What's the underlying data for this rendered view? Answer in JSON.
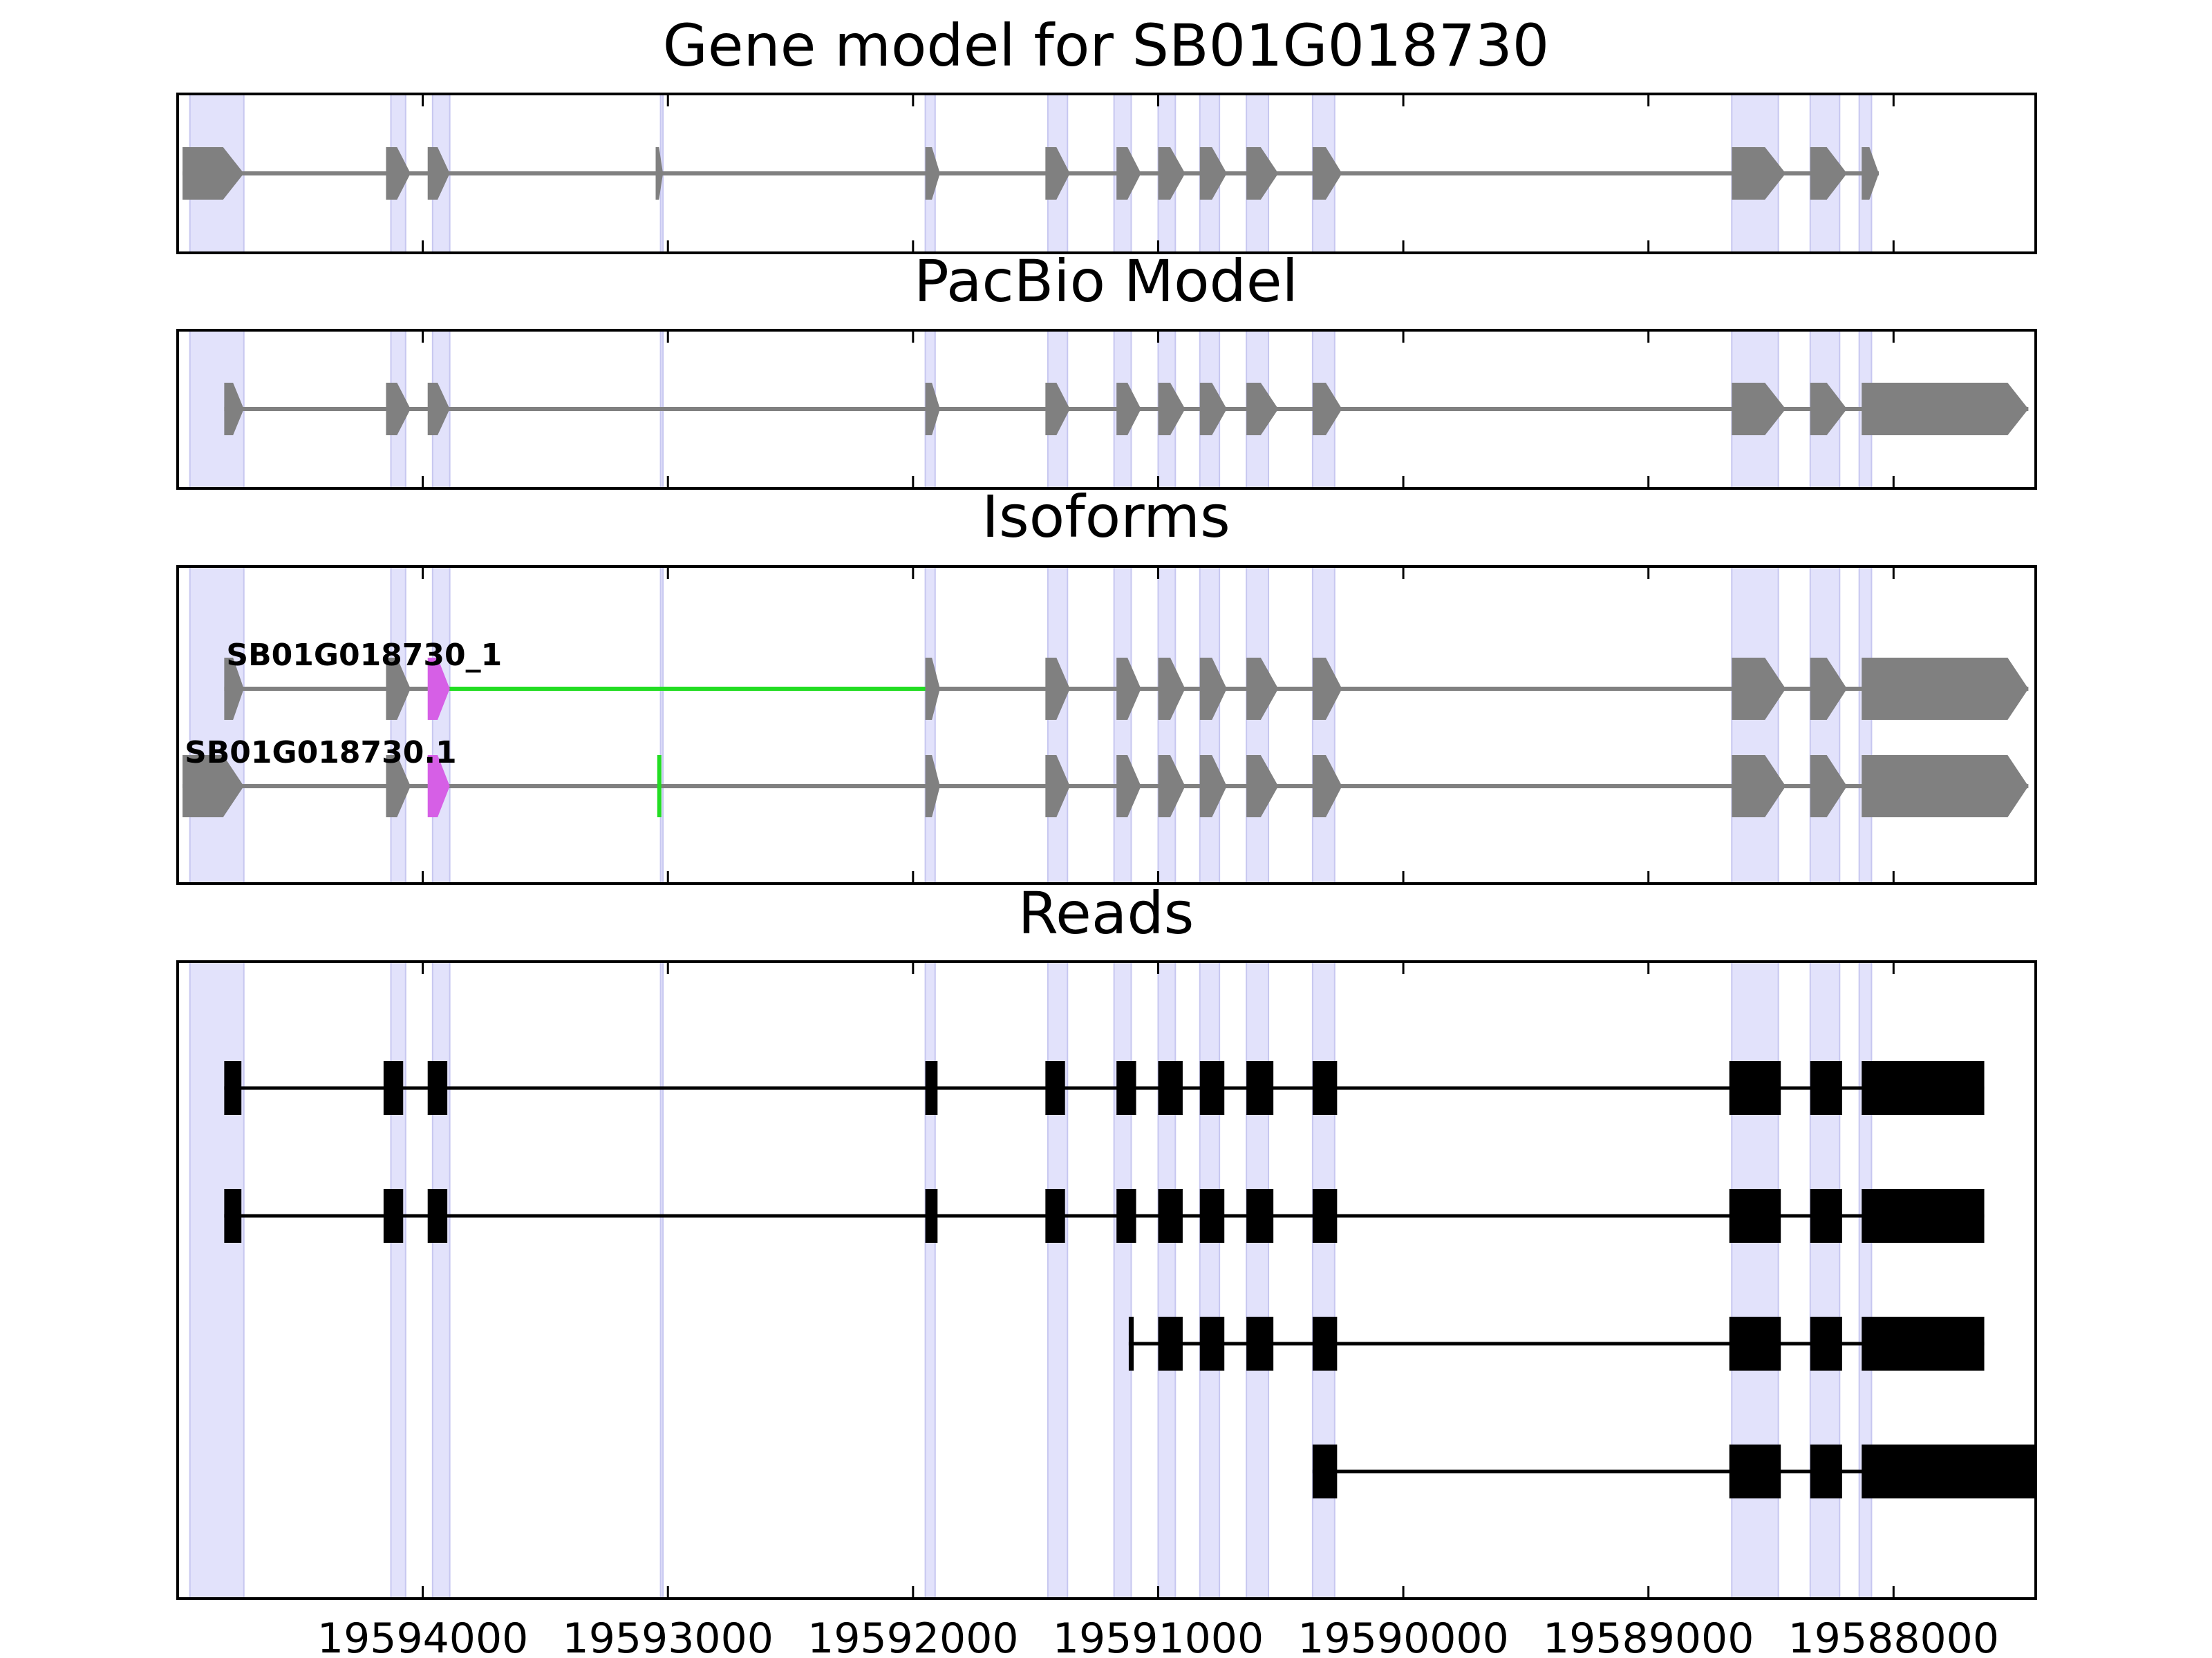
{
  "chart_data": {
    "type": "gene-track",
    "x_range": [
      19595000,
      19587420
    ],
    "x_axis_reversed": true,
    "x_ticks": [
      19594000,
      19593000,
      19592000,
      19591000,
      19590000,
      19589000,
      19588000
    ],
    "x_tick_labels": [
      "19594000",
      "19593000",
      "19592000",
      "19591000",
      "19590000",
      "19589000",
      "19588000"
    ],
    "colors": {
      "exon": "#808080",
      "read": "#000000",
      "highlight": "#e2e2fb",
      "highlight_edge": "#c7c7f0",
      "novel_exon": "#d65fe6",
      "novel_junction": "#22dd22",
      "frame": "#000000"
    },
    "highlight_regions": [
      [
        19594950,
        19594730
      ],
      [
        19594130,
        19594070
      ],
      [
        19593960,
        19593890
      ],
      [
        19593030,
        19593020
      ],
      [
        19591950,
        19591910
      ],
      [
        19591450,
        19591370
      ],
      [
        19591180,
        19591110
      ],
      [
        19591000,
        19590930
      ],
      [
        19590830,
        19590750
      ],
      [
        19590640,
        19590550
      ],
      [
        19590370,
        19590280
      ],
      [
        19588660,
        19588470
      ],
      [
        19588340,
        19588220
      ],
      [
        19588140,
        19588090
      ]
    ],
    "panels": [
      {
        "title": "Gene model for SB01G018730",
        "tracks": [
          {
            "label": "",
            "style": "gene",
            "exons": [
              [
                19594980,
                19594730
              ],
              [
                19594150,
                19594050
              ],
              [
                19593980,
                19593890
              ],
              [
                19593050,
                19593020
              ],
              [
                19591950,
                19591890
              ],
              [
                19591460,
                19591360
              ],
              [
                19591170,
                19591070
              ],
              [
                19591000,
                19590890
              ],
              [
                19590830,
                19590720
              ],
              [
                19590640,
                19590510
              ],
              [
                19590370,
                19590250
              ],
              [
                19588660,
                19588440
              ],
              [
                19588340,
                19588190
              ],
              [
                19588130,
                19588060
              ]
            ],
            "novel_exons": [],
            "novel_junctions": []
          }
        ]
      },
      {
        "title": "PacBio Model",
        "tracks": [
          {
            "label": "",
            "style": "gene",
            "exons": [
              [
                19594810,
                19594730
              ],
              [
                19594150,
                19594050
              ],
              [
                19593980,
                19593890
              ],
              [
                19591950,
                19591890
              ],
              [
                19591460,
                19591360
              ],
              [
                19591170,
                19591070
              ],
              [
                19591000,
                19590890
              ],
              [
                19590830,
                19590720
              ],
              [
                19590640,
                19590510
              ],
              [
                19590370,
                19590250
              ],
              [
                19588660,
                19588440
              ],
              [
                19588340,
                19588190
              ],
              [
                19588130,
                19587450
              ]
            ],
            "novel_exons": [],
            "novel_junctions": []
          }
        ]
      },
      {
        "title": "Isoforms",
        "tracks": [
          {
            "label": "SB01G018730_1",
            "style": "gene",
            "exons": [
              [
                19594810,
                19594730
              ],
              [
                19594150,
                19594050
              ],
              [
                19591950,
                19591890
              ],
              [
                19591460,
                19591360
              ],
              [
                19591170,
                19591070
              ],
              [
                19591000,
                19590890
              ],
              [
                19590830,
                19590720
              ],
              [
                19590640,
                19590510
              ],
              [
                19590370,
                19590250
              ],
              [
                19588660,
                19588440
              ],
              [
                19588340,
                19588190
              ],
              [
                19588130,
                19587450
              ]
            ],
            "novel_exons": [
              [
                19593980,
                19593890
              ]
            ],
            "novel_junctions": [
              [
                19593890,
                19591950
              ]
            ]
          },
          {
            "label": "SB01G018730.1",
            "style": "gene",
            "exons": [
              [
                19594980,
                19594730
              ],
              [
                19594150,
                19594050
              ],
              [
                19591950,
                19591890
              ],
              [
                19591460,
                19591360
              ],
              [
                19591170,
                19591070
              ],
              [
                19591000,
                19590890
              ],
              [
                19590830,
                19590720
              ],
              [
                19590640,
                19590510
              ],
              [
                19590370,
                19590250
              ],
              [
                19588660,
                19588440
              ],
              [
                19588340,
                19588190
              ],
              [
                19588130,
                19587450
              ]
            ],
            "novel_exons": [
              [
                19593980,
                19593890
              ]
            ],
            "novel_junctions": [
              [
                19593035,
                19593035
              ]
            ]
          }
        ]
      },
      {
        "title": "Reads",
        "tracks": [
          {
            "label": "",
            "style": "read",
            "exons": [
              [
                19594810,
                19594740
              ],
              [
                19594160,
                19594080
              ],
              [
                19593980,
                19593900
              ],
              [
                19591950,
                19591900
              ],
              [
                19591460,
                19591380
              ],
              [
                19591170,
                19591090
              ],
              [
                19591000,
                19590900
              ],
              [
                19590830,
                19590730
              ],
              [
                19590640,
                19590530
              ],
              [
                19590370,
                19590270
              ],
              [
                19588670,
                19588460
              ],
              [
                19588340,
                19588210
              ],
              [
                19588130,
                19587630
              ]
            ]
          },
          {
            "label": "",
            "style": "read",
            "exons": [
              [
                19594810,
                19594740
              ],
              [
                19594160,
                19594080
              ],
              [
                19593980,
                19593900
              ],
              [
                19591950,
                19591900
              ],
              [
                19591460,
                19591380
              ],
              [
                19591170,
                19591090
              ],
              [
                19591000,
                19590900
              ],
              [
                19590830,
                19590730
              ],
              [
                19590640,
                19590530
              ],
              [
                19590370,
                19590270
              ],
              [
                19588670,
                19588460
              ],
              [
                19588340,
                19588210
              ],
              [
                19588130,
                19587630
              ]
            ]
          },
          {
            "label": "",
            "style": "read",
            "exons": [
              [
                19591120,
                19591100
              ],
              [
                19591000,
                19590900
              ],
              [
                19590830,
                19590730
              ],
              [
                19590640,
                19590530
              ],
              [
                19590370,
                19590270
              ],
              [
                19588670,
                19588460
              ],
              [
                19588340,
                19588210
              ],
              [
                19588130,
                19587630
              ]
            ]
          },
          {
            "label": "",
            "style": "read",
            "exons": [
              [
                19590370,
                19590270
              ],
              [
                19588670,
                19588460
              ],
              [
                19588340,
                19588210
              ],
              [
                19588130,
                19587420
              ]
            ]
          }
        ]
      }
    ]
  }
}
